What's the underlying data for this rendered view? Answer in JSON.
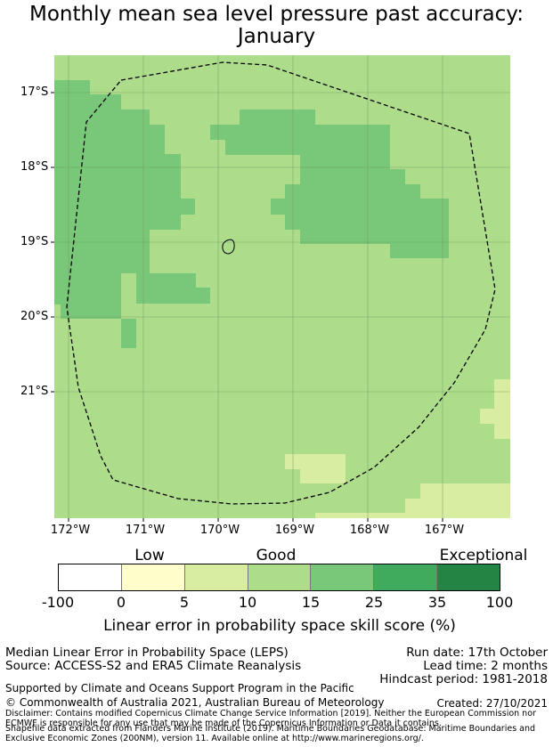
{
  "title_line1": "Monthly mean sea level pressure past accuracy:",
  "title_line2": "January",
  "map": {
    "lat_labels": [
      "17°S",
      "18°S",
      "19°S",
      "20°S",
      "21°S"
    ],
    "lon_labels": [
      "172°W",
      "171°W",
      "170°W",
      "169°W",
      "168°W",
      "167°W"
    ],
    "colors": {
      "good_light": "#addc8b",
      "good_dark": "#79c87a",
      "fair": "#d8eda1",
      "grid": "#6b8f5a",
      "outline": "#000000"
    }
  },
  "colorbar": {
    "categories": [
      "Low",
      "Good",
      "Exceptional"
    ],
    "ticks": [
      "-100",
      "0",
      "5",
      "10",
      "15",
      "25",
      "35",
      "100"
    ],
    "colors": [
      "#ffffff",
      "#ffffcc",
      "#d8eda1",
      "#addc8b",
      "#79c87a",
      "#41ab5d",
      "#238443"
    ],
    "label": "Linear error in probability space skill score (%)"
  },
  "footer": {
    "left1": "Median Linear Error in Probability Space (LEPS)",
    "left2": "Source: ACCESS-S2 and ERA5 Climate Reanalysis",
    "right1": "Run date: 17th October",
    "right2": "Lead time: 2 months",
    "right3": "Hindcast period: 1981-2018",
    "support": "Supported by Climate and Oceans Support Program in the Pacific",
    "copyright": "© Commonwealth of Australia 2021, Australian Bureau of Meteorology",
    "created": "Created: 27/10/2021",
    "disclaimer": "Disclaimer: Contains modified Copernicus Climate Change Service Information [2019]. Neither the European Commission nor ECMWF is responsible for any use that may be made of the Copernicus Information or Data it contains.",
    "shapefile": "Shapefile data extracted from Flanders Marine Institute (2019). Maritime Boundaries Geodatabase: Maritime Boundaries and Exclusive Economic Zones (200NM), version 11. Available online at http://www.marineregions.org/."
  }
}
